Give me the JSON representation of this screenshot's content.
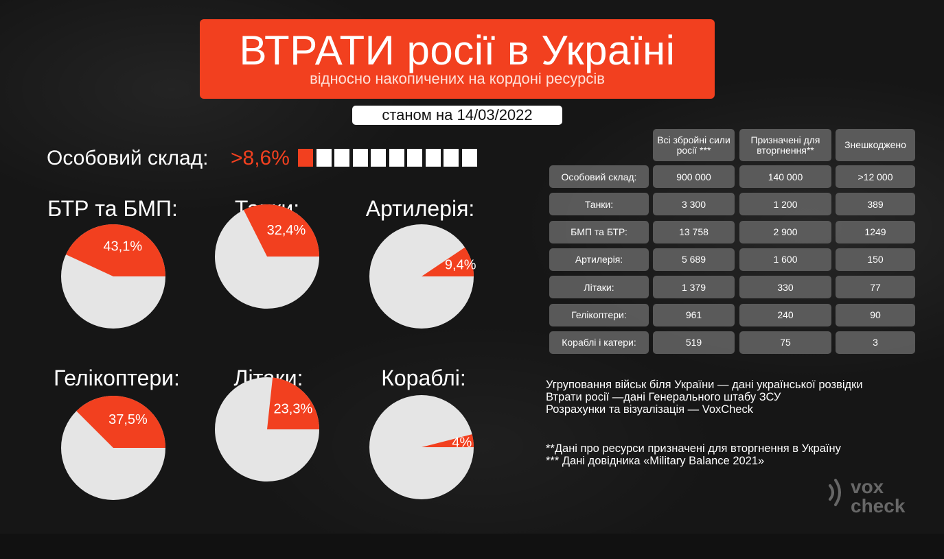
{
  "header": {
    "title": "ВТРАТИ росії в Україні",
    "subtitle": "відносно накопичених на кордоні ресурсів",
    "date": "станом на 14/03/2022"
  },
  "personnel": {
    "label": "Особовий склад:",
    "percent": ">8,6%",
    "filled_squares": 1,
    "total_squares": 10
  },
  "colors": {
    "accent": "#f2401f",
    "pie_rest": "#e5e5e5",
    "background": "#161616"
  },
  "chart_data": [
    {
      "type": "pie",
      "title": "БТР та БМП:",
      "values": [
        43.1,
        56.9
      ],
      "label": "43,1%"
    },
    {
      "type": "pie",
      "title": "Танки:",
      "values": [
        32.4,
        67.6
      ],
      "label": "32,4%"
    },
    {
      "type": "pie",
      "title": "Артилерія:",
      "values": [
        9.4,
        90.6
      ],
      "label": "9,4%"
    },
    {
      "type": "pie",
      "title": "Гелікоптери:",
      "values": [
        37.5,
        62.5
      ],
      "label": "37,5%"
    },
    {
      "type": "pie",
      "title": "Літаки:",
      "values": [
        23.3,
        76.7
      ],
      "label": "23,3%"
    },
    {
      "type": "pie",
      "title": "Кораблі:",
      "values": [
        4,
        96
      ],
      "label": "4%"
    }
  ],
  "table": {
    "headers": [
      "Всі збройні сили росії ***",
      "Призначені для вторгнення**",
      "Знешкоджено"
    ],
    "rows": [
      {
        "label": "Особовий склад:",
        "values": [
          "900 000",
          "140 000",
          ">12 000"
        ]
      },
      {
        "label": "Танки:",
        "values": [
          "3 300",
          "1 200",
          "389"
        ]
      },
      {
        "label": "БМП та БТР:",
        "values": [
          "13 758",
          "2 900",
          "1249"
        ]
      },
      {
        "label": "Артилерія:",
        "values": [
          "5 689",
          "1 600",
          "150"
        ]
      },
      {
        "label": "Літаки:",
        "values": [
          "1 379",
          "330",
          "77"
        ]
      },
      {
        "label": "Гелікоптери:",
        "values": [
          "961",
          "240",
          "90"
        ]
      },
      {
        "label": "Кораблі і катери:",
        "values": [
          "519",
          "75",
          "3"
        ]
      }
    ]
  },
  "sources": [
    "Угруповання військ біля України  — дані української розвідки",
    "Втрати росії —дані Генерального штабу ЗСУ",
    "Розрахунки та візуалізація — VoxCheck"
  ],
  "footnotes": [
    "**Дані про ресурси призначені для вторгнення в Україну",
    "*** Дані довідника «Military Balance 2021»"
  ],
  "logo": {
    "line1": "vox",
    "line2": "check",
    "icon": "sound-wave-icon"
  }
}
